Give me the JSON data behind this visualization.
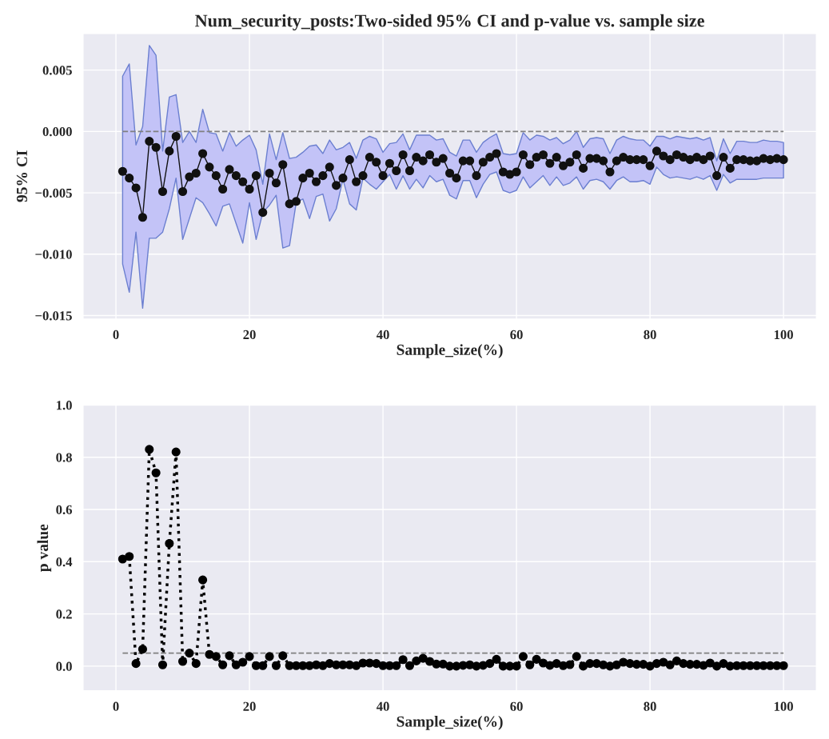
{
  "chart_data": [
    {
      "type": "line",
      "title": "Num_security_posts:Two-sided 95% CI and p-value vs. sample size",
      "xlabel": "Sample_size(%)",
      "ylabel": "95% CI",
      "x": [
        1,
        2,
        3,
        4,
        5,
        6,
        7,
        8,
        9,
        10,
        11,
        12,
        13,
        14,
        15,
        16,
        17,
        18,
        19,
        20,
        21,
        22,
        23,
        24,
        25,
        26,
        27,
        28,
        29,
        30,
        31,
        32,
        33,
        34,
        35,
        36,
        37,
        38,
        39,
        40,
        41,
        42,
        43,
        44,
        45,
        46,
        47,
        48,
        49,
        50,
        51,
        52,
        53,
        54,
        55,
        56,
        57,
        58,
        59,
        60,
        61,
        62,
        63,
        64,
        65,
        66,
        67,
        68,
        69,
        70,
        71,
        72,
        73,
        74,
        75,
        76,
        77,
        78,
        79,
        80,
        81,
        82,
        83,
        84,
        85,
        86,
        87,
        88,
        89,
        90,
        91,
        92,
        93,
        94,
        95,
        96,
        97,
        98,
        99,
        100
      ],
      "series": [
        {
          "color": "#111111",
          "marker": "circle",
          "line_style": "solid",
          "values": [
            -0.00325,
            -0.0038,
            -0.0046,
            -0.007,
            -0.0008,
            -0.0013,
            -0.0049,
            -0.0016,
            -0.0004,
            -0.0049,
            -0.0037,
            -0.0034,
            -0.0018,
            -0.0029,
            -0.0036,
            -0.0047,
            -0.0031,
            -0.0036,
            -0.0041,
            -0.0047,
            -0.0036,
            -0.0066,
            -0.0034,
            -0.0042,
            -0.0027,
            -0.0059,
            -0.0057,
            -0.0038,
            -0.0034,
            -0.0041,
            -0.0036,
            -0.0029,
            -0.0044,
            -0.0038,
            -0.0023,
            -0.0041,
            -0.0036,
            -0.0021,
            -0.0025,
            -0.0036,
            -0.0026,
            -0.0032,
            -0.0019,
            -0.0032,
            -0.0021,
            -0.0024,
            -0.0019,
            -0.0025,
            -0.0022,
            -0.0034,
            -0.0038,
            -0.0024,
            -0.0024,
            -0.0036,
            -0.0025,
            -0.0021,
            -0.0018,
            -0.0033,
            -0.0035,
            -0.0033,
            -0.0019,
            -0.0027,
            -0.0021,
            -0.0019,
            -0.0026,
            -0.0021,
            -0.0028,
            -0.0025,
            -0.0019,
            -0.003,
            -0.0022,
            -0.0022,
            -0.0024,
            -0.0033,
            -0.0024,
            -0.0021,
            -0.0023,
            -0.0023,
            -0.0023,
            -0.0028,
            -0.0016,
            -0.002,
            -0.0023,
            -0.0019,
            -0.0021,
            -0.0023,
            -0.0021,
            -0.0023,
            -0.002,
            -0.0036,
            -0.0021,
            -0.003,
            -0.0023,
            -0.0023,
            -0.0024,
            -0.0024,
            -0.0022,
            -0.0023,
            -0.0022,
            -0.0023
          ],
          "upper": [
            0.0045,
            0.0055,
            -0.0011,
            0.0004,
            0.007,
            0.0062,
            -0.0016,
            0.0028,
            0.003,
            -0.0009,
            0.0,
            -0.0009,
            0.0018,
            -0.0001,
            -0.0002,
            -0.0016,
            -0.0001,
            -0.0012,
            -0.0007,
            -0.0003,
            -0.0015,
            -0.0043,
            -0.0002,
            -0.0023,
            -0.0001,
            -0.0022,
            -0.0021,
            -0.0017,
            -0.0012,
            -0.0011,
            -0.0018,
            -0.0007,
            -0.0015,
            -0.0013,
            -0.0009,
            -0.0022,
            -0.0007,
            -0.0004,
            -0.0006,
            -0.0017,
            -0.001,
            -0.0009,
            -0.0002,
            -0.0015,
            -0.0003,
            -0.0003,
            -0.0003,
            -0.0007,
            -0.0006,
            -0.0017,
            -0.002,
            -0.0007,
            -0.0007,
            -0.0017,
            -0.0009,
            -0.0005,
            -0.0002,
            -0.0018,
            -0.0019,
            -0.0018,
            -0.0001,
            -0.0007,
            -0.0003,
            -0.0004,
            -0.0007,
            -0.0005,
            -0.001,
            -0.0007,
            0.0,
            -0.0013,
            -0.0006,
            -0.0005,
            -0.0006,
            -0.0018,
            -0.0007,
            -0.0004,
            -0.0006,
            -0.0007,
            -0.0007,
            -0.0012,
            -0.0004,
            -0.0004,
            -0.0006,
            -0.0004,
            -0.0005,
            -0.0006,
            -0.0005,
            -0.0007,
            -0.0005,
            -0.0024,
            -0.0006,
            -0.0018,
            -0.0008,
            -0.0008,
            -0.0009,
            -0.0009,
            -0.0007,
            -0.0008,
            -0.0008,
            -0.0009
          ],
          "lower": [
            -0.0108,
            -0.0131,
            -0.0082,
            -0.0144,
            -0.0087,
            -0.0087,
            -0.0082,
            -0.0063,
            -0.0038,
            -0.0088,
            -0.0071,
            -0.0054,
            -0.0058,
            -0.0067,
            -0.0077,
            -0.0061,
            -0.0059,
            -0.0075,
            -0.0091,
            -0.0058,
            -0.0088,
            -0.0066,
            -0.006,
            -0.0052,
            -0.0095,
            -0.0093,
            -0.0058,
            -0.0055,
            -0.0071,
            -0.0053,
            -0.0051,
            -0.0073,
            -0.0063,
            -0.0039,
            -0.0059,
            -0.0064,
            -0.0038,
            -0.0043,
            -0.0047,
            -0.0041,
            -0.0035,
            -0.0047,
            -0.0036,
            -0.0047,
            -0.0039,
            -0.0046,
            -0.0036,
            -0.0041,
            -0.0039,
            -0.0052,
            -0.0055,
            -0.004,
            -0.004,
            -0.0054,
            -0.0043,
            -0.0035,
            -0.0033,
            -0.0048,
            -0.005,
            -0.0048,
            -0.0037,
            -0.0046,
            -0.0041,
            -0.0036,
            -0.0044,
            -0.0037,
            -0.0044,
            -0.0042,
            -0.0037,
            -0.0047,
            -0.004,
            -0.0039,
            -0.0041,
            -0.0047,
            -0.004,
            -0.0037,
            -0.0041,
            -0.0041,
            -0.004,
            -0.0043,
            -0.0029,
            -0.0035,
            -0.0038,
            -0.0037,
            -0.0038,
            -0.0039,
            -0.0037,
            -0.0039,
            -0.0036,
            -0.0048,
            -0.0035,
            -0.0042,
            -0.0039,
            -0.0039,
            -0.0039,
            -0.0039,
            -0.0038,
            -0.0038,
            -0.0038,
            -0.0038
          ]
        }
      ],
      "xlim": [
        -4.95,
        104.95
      ],
      "ylim": [
        -0.0153,
        0.008
      ],
      "xticks": [
        0,
        20,
        40,
        60,
        80,
        100
      ],
      "yticks": [
        {
          "value": -0.015,
          "label": "−0.015"
        },
        {
          "value": -0.01,
          "label": "−0.010"
        },
        {
          "value": -0.005,
          "label": "−0.005"
        },
        {
          "value": 0,
          "label": "0.000"
        },
        {
          "value": 0.005,
          "label": "0.005"
        }
      ],
      "grid": true,
      "ref_lines": [
        {
          "axis": "y",
          "value": 0,
          "color": "#808080",
          "line_style": "dashed"
        }
      ]
    },
    {
      "type": "line",
      "xlabel": "Sample_size(%)",
      "ylabel": "p value",
      "x": [
        1,
        2,
        3,
        4,
        5,
        6,
        7,
        8,
        9,
        10,
        11,
        12,
        13,
        14,
        15,
        16,
        17,
        18,
        19,
        20,
        21,
        22,
        23,
        24,
        25,
        26,
        27,
        28,
        29,
        30,
        31,
        32,
        33,
        34,
        35,
        36,
        37,
        38,
        39,
        40,
        41,
        42,
        43,
        44,
        45,
        46,
        47,
        48,
        49,
        50,
        51,
        52,
        53,
        54,
        55,
        56,
        57,
        58,
        59,
        60,
        61,
        62,
        63,
        64,
        65,
        66,
        67,
        68,
        69,
        70,
        71,
        72,
        73,
        74,
        75,
        76,
        77,
        78,
        79,
        80,
        81,
        82,
        83,
        84,
        85,
        86,
        87,
        88,
        89,
        90,
        91,
        92,
        93,
        94,
        95,
        96,
        97,
        98,
        99,
        100
      ],
      "series": [
        {
          "color": "#000000",
          "marker": "circle",
          "line_style": "dotted",
          "values": [
            0.41,
            0.42,
            0.01,
            0.065,
            0.83,
            0.74,
            0.005,
            0.47,
            0.82,
            0.018,
            0.05,
            0.01,
            0.33,
            0.045,
            0.037,
            0.005,
            0.04,
            0.005,
            0.015,
            0.037,
            0.002,
            0.002,
            0.037,
            0.002,
            0.04,
            0.002,
            0.002,
            0.002,
            0.002,
            0.005,
            0.002,
            0.01,
            0.005,
            0.005,
            0.005,
            0.002,
            0.012,
            0.012,
            0.01,
            0.002,
            0.002,
            0.002,
            0.025,
            0.002,
            0.02,
            0.03,
            0.018,
            0.008,
            0.008,
            0.0,
            0.0,
            0.003,
            0.005,
            0.0,
            0.003,
            0.01,
            0.026,
            0.0,
            0.0,
            0.0,
            0.037,
            0.005,
            0.026,
            0.012,
            0.003,
            0.01,
            0.002,
            0.006,
            0.037,
            0.0,
            0.01,
            0.01,
            0.005,
            0.0,
            0.005,
            0.015,
            0.01,
            0.007,
            0.007,
            0.0,
            0.01,
            0.015,
            0.005,
            0.02,
            0.01,
            0.007,
            0.007,
            0.003,
            0.012,
            0.0,
            0.01,
            0.0,
            0.002,
            0.002,
            0.002,
            0.002,
            0.002,
            0.002,
            0.002,
            0.002
          ]
        }
      ],
      "xlim": [
        -4.95,
        104.95
      ],
      "ylim": [
        -0.095,
        1.0
      ],
      "xticks": [
        0,
        20,
        40,
        60,
        80,
        100
      ],
      "yticks": [
        {
          "value": 0,
          "label": "0.0"
        },
        {
          "value": 0.2,
          "label": "0.2"
        },
        {
          "value": 0.4,
          "label": "0.4"
        },
        {
          "value": 0.6,
          "label": "0.6"
        },
        {
          "value": 0.8,
          "label": "0.8"
        },
        {
          "value": 1.0,
          "label": "1.0"
        }
      ],
      "grid": true,
      "ref_lines": [
        {
          "axis": "y",
          "value": 0.05,
          "color": "#808080",
          "line_style": "dashed"
        }
      ]
    }
  ]
}
